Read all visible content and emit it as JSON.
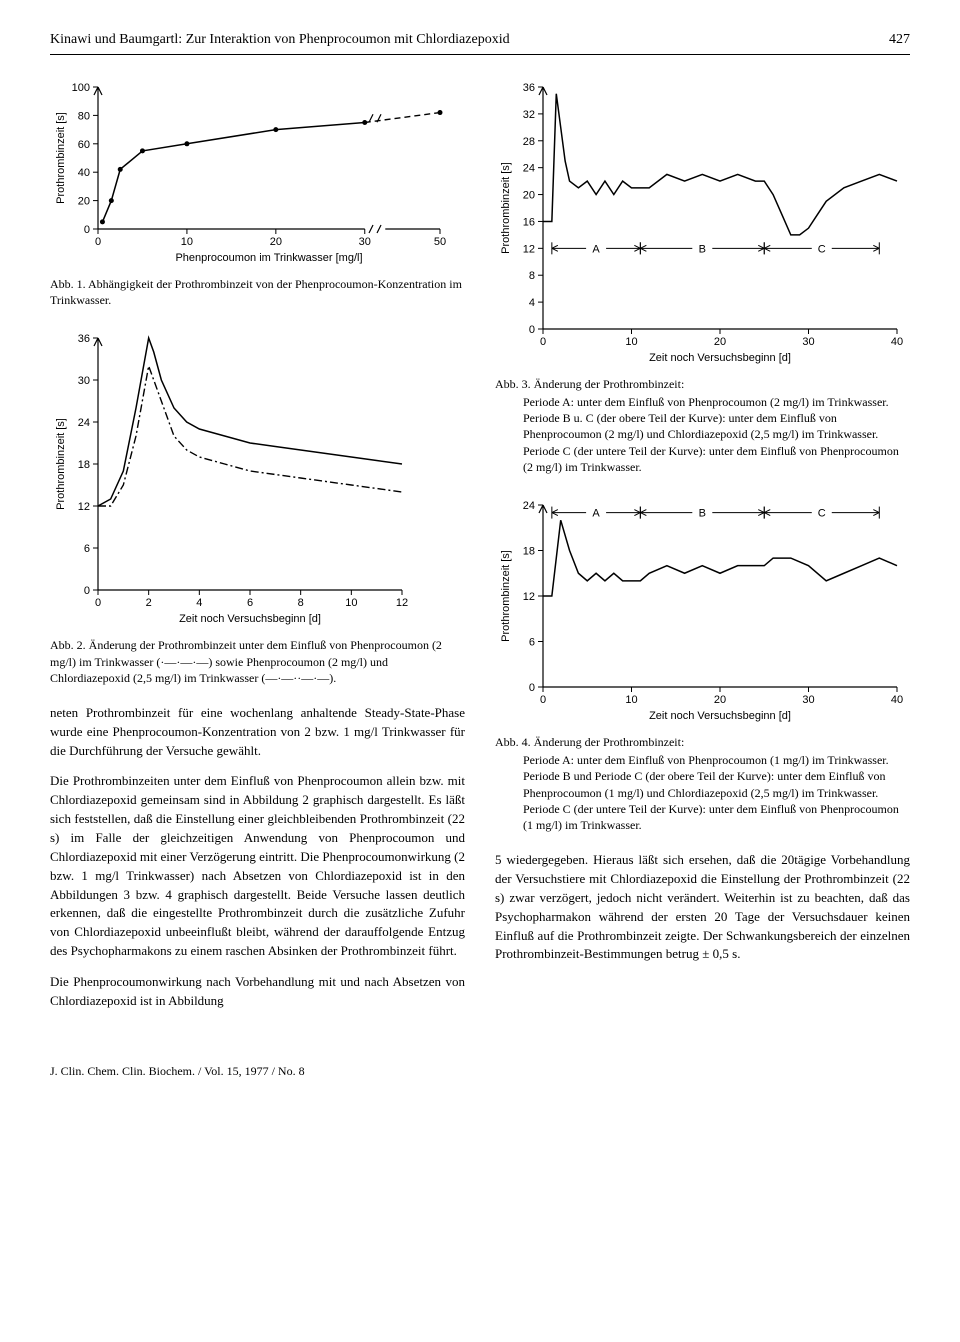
{
  "header": {
    "title": "Kinawi und Baumgartl: Zur Interaktion von Phenprocoumon mit Chlordiazepoxid",
    "page_number": "427"
  },
  "fig1": {
    "type": "line",
    "xlabel": "Phenprocoumon im Trinkwasser [mg/l]",
    "ylabel": "Prothrombinzeit [s]",
    "xlim": [
      0,
      50
    ],
    "ylim": [
      0,
      100
    ],
    "xticks": [
      0,
      10,
      20,
      30,
      50
    ],
    "yticks": [
      0,
      20,
      40,
      60,
      80,
      100
    ],
    "x_break_between": [
      30,
      50
    ],
    "series": [
      {
        "style": "solid",
        "markers": true,
        "points": [
          [
            0.5,
            5
          ],
          [
            1.5,
            20
          ],
          [
            2.5,
            42
          ],
          [
            5,
            55
          ],
          [
            10,
            60
          ],
          [
            20,
            70
          ],
          [
            30,
            75
          ]
        ]
      },
      {
        "style": "dash",
        "after_break": true,
        "points": [
          [
            30,
            75
          ],
          [
            50,
            82
          ]
        ]
      },
      {
        "style": "solid",
        "markers": true,
        "after_break": true,
        "points": [
          [
            50,
            82
          ],
          [
            50,
            85
          ]
        ]
      }
    ],
    "caption_head": "Abb. 1.",
    "caption_text": "Abhängigkeit der Prothrombinzeit von der Phenprocoumon-Konzentration im Trinkwasser."
  },
  "fig2": {
    "type": "line",
    "xlabel": "Zeit noch Versuchsbeginn [d]",
    "ylabel": "Prothrombinzeit [s]",
    "xlim": [
      0,
      12
    ],
    "ylim": [
      0,
      36
    ],
    "xticks": [
      0,
      2,
      4,
      6,
      8,
      10,
      12
    ],
    "yticks": [
      0,
      6,
      12,
      18,
      24,
      30,
      36
    ],
    "series": [
      {
        "style": "dotdash",
        "points": [
          [
            0,
            12
          ],
          [
            0.5,
            12
          ],
          [
            1,
            15
          ],
          [
            1.5,
            22
          ],
          [
            2,
            32
          ],
          [
            2.5,
            27
          ],
          [
            3,
            22
          ],
          [
            3.5,
            20
          ],
          [
            4,
            19
          ],
          [
            5,
            18
          ],
          [
            6,
            17
          ],
          [
            7,
            16.5
          ],
          [
            8,
            16
          ],
          [
            9,
            15.5
          ],
          [
            10,
            15
          ],
          [
            11,
            14.5
          ],
          [
            12,
            14
          ]
        ]
      },
      {
        "style": "solid",
        "points": [
          [
            0,
            12
          ],
          [
            0.5,
            13
          ],
          [
            1,
            17
          ],
          [
            1.5,
            26
          ],
          [
            2,
            36
          ],
          [
            2.2,
            34
          ],
          [
            2.5,
            30
          ],
          [
            3,
            26
          ],
          [
            3.5,
            24
          ],
          [
            4,
            23
          ],
          [
            5,
            22
          ],
          [
            6,
            21
          ],
          [
            7,
            20.5
          ],
          [
            8,
            20
          ],
          [
            9,
            19.5
          ],
          [
            10,
            19
          ],
          [
            11,
            18.5
          ],
          [
            12,
            18
          ]
        ]
      }
    ],
    "caption_head": "Abb. 2.",
    "caption_text": "Änderung der Prothrombinzeit unter dem Einfluß von Phenprocoumon (2 mg/l) im Trinkwasser (·—·—·—) sowie Phenprocoumon (2 mg/l) und Chlordiazepoxid (2,5 mg/l) im Trinkwasser (—·—··—·—)."
  },
  "fig3": {
    "type": "line",
    "xlabel": "Zeit noch Versuchsbeginn [d]",
    "ylabel": "Prothrombinzeit [s]",
    "xlim": [
      0,
      40
    ],
    "ylim": [
      0,
      36
    ],
    "xticks": [
      0,
      10,
      20,
      30,
      40
    ],
    "yticks": [
      0,
      4,
      8,
      12,
      16,
      20,
      24,
      28,
      32,
      36
    ],
    "regions": {
      "A": [
        1,
        11
      ],
      "B": [
        11,
        25
      ],
      "C": [
        25,
        38
      ]
    },
    "series": [
      {
        "style": "solid",
        "points": [
          [
            0,
            16
          ],
          [
            1,
            16
          ],
          [
            1.5,
            35
          ],
          [
            2,
            30
          ],
          [
            2.5,
            25
          ],
          [
            3,
            22
          ],
          [
            4,
            21
          ],
          [
            5,
            22
          ],
          [
            6,
            20
          ],
          [
            7,
            22
          ],
          [
            8,
            20
          ],
          [
            9,
            22
          ],
          [
            10,
            21
          ],
          [
            11,
            21
          ],
          [
            12,
            21
          ],
          [
            14,
            23
          ],
          [
            16,
            22
          ],
          [
            18,
            23
          ],
          [
            20,
            22
          ],
          [
            22,
            23
          ],
          [
            24,
            22
          ],
          [
            25,
            22
          ],
          [
            26,
            20
          ],
          [
            27,
            17
          ],
          [
            28,
            14
          ],
          [
            29,
            14
          ],
          [
            30,
            15
          ],
          [
            31,
            17
          ],
          [
            32,
            19
          ],
          [
            34,
            21
          ],
          [
            36,
            22
          ],
          [
            38,
            23
          ],
          [
            40,
            22
          ]
        ]
      }
    ],
    "caption_head": "Abb. 3.",
    "caption_text": "Änderung der Prothrombinzeit:",
    "caption_lines": [
      "Periode A: unter dem Einfluß von Phenprocoumon (2 mg/l) im Trinkwasser.",
      "Periode B u. C (der obere Teil der Kurve): unter dem Einfluß von Phenprocoumon (2 mg/l) und Chlordiazepoxid (2,5 mg/l) im Trinkwasser.",
      "Periode C (der untere Teil der Kurve): unter dem Einfluß von Phenprocoumon (2 mg/l) im Trinkwasser."
    ]
  },
  "fig4": {
    "type": "line",
    "xlabel": "Zeit noch Versuchsbeginn [d]",
    "ylabel": "Prothrombinzeit [s]",
    "xlim": [
      0,
      40
    ],
    "ylim": [
      0,
      24
    ],
    "xticks": [
      0,
      10,
      20,
      30,
      40
    ],
    "yticks": [
      0,
      6,
      12,
      18,
      24
    ],
    "regions": {
      "A": [
        1,
        11
      ],
      "B": [
        11,
        25
      ],
      "C": [
        25,
        38
      ]
    },
    "series": [
      {
        "style": "solid",
        "points": [
          [
            0,
            12
          ],
          [
            1,
            12
          ],
          [
            2,
            22
          ],
          [
            3,
            18
          ],
          [
            4,
            15
          ],
          [
            5,
            14
          ],
          [
            6,
            15
          ],
          [
            7,
            14
          ],
          [
            8,
            15
          ],
          [
            9,
            14
          ],
          [
            10,
            14
          ],
          [
            11,
            14
          ],
          [
            12,
            15
          ],
          [
            14,
            16
          ],
          [
            16,
            15
          ],
          [
            18,
            16
          ],
          [
            20,
            15
          ],
          [
            22,
            16
          ],
          [
            24,
            16
          ],
          [
            25,
            16
          ],
          [
            26,
            17
          ],
          [
            28,
            17
          ],
          [
            30,
            16
          ],
          [
            32,
            14
          ],
          [
            34,
            15
          ],
          [
            36,
            16
          ],
          [
            38,
            17
          ],
          [
            40,
            16
          ]
        ]
      }
    ],
    "caption_head": "Abb. 4.",
    "caption_text": "Änderung der Prothrombinzeit:",
    "caption_lines": [
      "Periode A: unter dem Einfluß von Phenprocoumon (1 mg/l) im Trinkwasser.",
      "Periode B und Periode C (der obere Teil der Kurve): unter dem Einfluß von Phenprocoumon (1 mg/l) und Chlordiazepoxid (2,5 mg/l) im Trinkwasser.",
      "Periode C (der untere Teil der Kurve): unter dem Einfluß von Phenprocoumon (1 mg/l) im Trinkwasser."
    ]
  },
  "body": {
    "p1": "neten Prothrombinzeit für eine wochenlang anhaltende Steady-State-Phase wurde eine Phenprocoumon-Konzentration von 2 bzw. 1 mg/l Trinkwasser für die Durchführung der Versuche gewählt.",
    "p2": "Die Prothrombinzeiten unter dem Einfluß von Phenprocoumon allein bzw. mit Chlordiazepoxid gemeinsam sind in Abbildung 2 graphisch dargestellt. Es läßt sich feststellen, daß die Einstellung einer gleichbleibenden Prothrombinzeit (22 s) im Falle der gleichzeitigen Anwendung von Phenprocoumon und Chlordiazepoxid mit einer Verzögerung eintritt. Die Phenprocoumonwirkung (2 bzw. 1 mg/l Trinkwasser) nach Absetzen von Chlordiazepoxid ist in den Abbildungen 3 bzw. 4 graphisch dargestellt. Beide Versuche lassen deutlich erkennen, daß die eingestellte Prothrombinzeit durch die zusätzliche Zufuhr von Chlordiazepoxid unbeeinflußt bleibt, während der darauffolgende Entzug des Psychopharmakons zu einem raschen Absinken der Prothrombinzeit führt.",
    "p3": "Die Phenprocoumonwirkung nach Vorbehandlung mit und nach Absetzen von Chlordiazepoxid ist in Abbildung",
    "p4": "5 wiedergegeben. Hieraus läßt sich ersehen, daß die 20tägige Vorbehandlung der Versuchstiere mit Chlordiazepoxid die Einstellung der Prothrombinzeit (22 s) zwar verzögert, jedoch nicht verändert. Weiterhin ist zu beachten, daß das Psychopharmakon während der ersten 20 Tage der Versuchsdauer keinen Einfluß auf die Prothrombinzeit zeigte. Der Schwankungsbereich der einzelnen Prothrombinzeit-Bestimmungen betrug ± 0,5 s."
  },
  "footer": "J. Clin. Chem. Clin. Biochem. / Vol. 15, 1977 / No. 8"
}
